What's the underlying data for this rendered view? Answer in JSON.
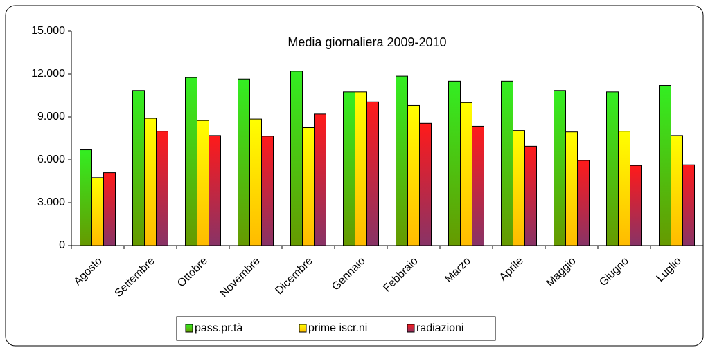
{
  "chart_data": {
    "type": "bar",
    "title": "Media giornaliera 2009-2010",
    "categories": [
      "Agosto",
      "Settembre",
      "Ottobre",
      "Novembre",
      "Dicembre",
      "Gennaio",
      "Febbraio",
      "Marzo",
      "Aprile",
      "Maggio",
      "Giugno",
      "Luglio"
    ],
    "series": [
      {
        "name": "pass.pr.tà",
        "color": "#33dd22",
        "values": [
          6700,
          10850,
          11750,
          11650,
          12200,
          10750,
          11850,
          11500,
          11500,
          10850,
          10750,
          11200
        ]
      },
      {
        "name": "prime iscr.ni",
        "color": "#ffff00",
        "values": [
          4750,
          8900,
          8750,
          8850,
          8250,
          10750,
          9800,
          10000,
          8050,
          7950,
          8000,
          7700
        ]
      },
      {
        "name": "radiazioni",
        "color": "#ee1c25",
        "values": [
          5100,
          8000,
          7700,
          7650,
          9200,
          10050,
          8550,
          8350,
          6950,
          5950,
          5600,
          5650
        ]
      }
    ],
    "ylim": [
      0,
      15000
    ],
    "yticks": [
      0,
      {
        "value": 3000,
        "label": "3.000"
      },
      {
        "value": 6000,
        "label": "6.000"
      },
      {
        "value": 9000,
        "label": "9.000"
      },
      {
        "value": 12000,
        "label": "12.000"
      },
      {
        "value": 15000,
        "label": "15.000"
      }
    ],
    "grid": false
  }
}
